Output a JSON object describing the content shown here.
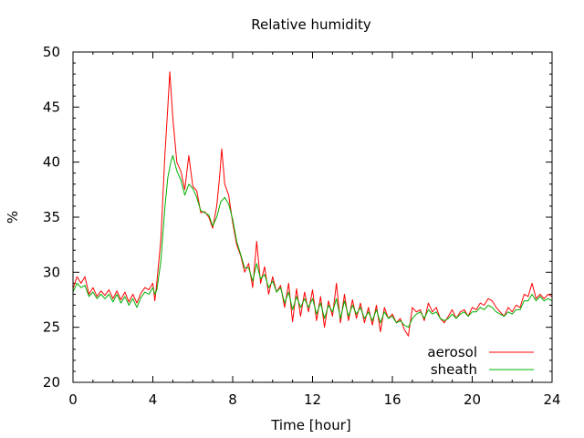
{
  "chart_data": {
    "type": "line",
    "title": "Relative humidity",
    "xlabel": "Time [hour]",
    "ylabel": "%",
    "xlim": [
      0,
      24
    ],
    "ylim": [
      20,
      50
    ],
    "x_ticks": [
      0,
      4,
      8,
      12,
      16,
      20,
      24
    ],
    "y_ticks": [
      20,
      25,
      30,
      35,
      40,
      45,
      50
    ],
    "grid": false,
    "legend_position": "bottom-right",
    "series": [
      {
        "name": "aerosol",
        "color": "#ff0000",
        "points": [
          [
            0,
            28.5
          ],
          [
            0.2,
            29.6
          ],
          [
            0.4,
            29.0
          ],
          [
            0.6,
            29.6
          ],
          [
            0.8,
            28.0
          ],
          [
            1,
            28.6
          ],
          [
            1.2,
            27.8
          ],
          [
            1.4,
            28.3
          ],
          [
            1.6,
            27.9
          ],
          [
            1.8,
            28.4
          ],
          [
            2,
            27.6
          ],
          [
            2.2,
            28.3
          ],
          [
            2.4,
            27.5
          ],
          [
            2.6,
            28.2
          ],
          [
            2.8,
            27.3
          ],
          [
            3,
            28.0
          ],
          [
            3.2,
            27.2
          ],
          [
            3.4,
            28.1
          ],
          [
            3.6,
            28.6
          ],
          [
            3.8,
            28.4
          ],
          [
            4,
            29.0
          ],
          [
            4.1,
            27.4
          ],
          [
            4.2,
            29.1
          ],
          [
            4.4,
            33.0
          ],
          [
            4.6,
            40.5
          ],
          [
            4.75,
            45.0
          ],
          [
            4.85,
            48.2
          ],
          [
            5.0,
            44.0
          ],
          [
            5.2,
            40.0
          ],
          [
            5.4,
            39.2
          ],
          [
            5.6,
            37.5
          ],
          [
            5.8,
            40.6
          ],
          [
            6.0,
            37.8
          ],
          [
            6.2,
            37.4
          ],
          [
            6.4,
            35.4
          ],
          [
            6.6,
            35.5
          ],
          [
            6.8,
            35.0
          ],
          [
            7.0,
            34.0
          ],
          [
            7.2,
            36.0
          ],
          [
            7.35,
            38.8
          ],
          [
            7.45,
            41.2
          ],
          [
            7.6,
            38.0
          ],
          [
            7.8,
            37.0
          ],
          [
            8.0,
            34.5
          ],
          [
            8.2,
            32.5
          ],
          [
            8.4,
            31.5
          ],
          [
            8.6,
            30.0
          ],
          [
            8.8,
            30.8
          ],
          [
            9.0,
            28.6
          ],
          [
            9.2,
            32.8
          ],
          [
            9.4,
            29.0
          ],
          [
            9.6,
            30.5
          ],
          [
            9.8,
            28.0
          ],
          [
            10.0,
            29.6
          ],
          [
            10.2,
            28.2
          ],
          [
            10.4,
            28.8
          ],
          [
            10.6,
            26.8
          ],
          [
            10.8,
            29.0
          ],
          [
            11.0,
            25.5
          ],
          [
            11.2,
            28.5
          ],
          [
            11.4,
            26.0
          ],
          [
            11.6,
            28.2
          ],
          [
            11.8,
            26.4
          ],
          [
            12.0,
            28.4
          ],
          [
            12.2,
            25.6
          ],
          [
            12.4,
            27.8
          ],
          [
            12.6,
            25.0
          ],
          [
            12.8,
            27.4
          ],
          [
            13.0,
            26.0
          ],
          [
            13.2,
            29.0
          ],
          [
            13.4,
            25.4
          ],
          [
            13.6,
            28.0
          ],
          [
            13.8,
            25.6
          ],
          [
            14.0,
            27.5
          ],
          [
            14.2,
            25.8
          ],
          [
            14.4,
            27.2
          ],
          [
            14.6,
            25.4
          ],
          [
            14.8,
            26.8
          ],
          [
            15.0,
            25.2
          ],
          [
            15.2,
            27.0
          ],
          [
            15.4,
            24.6
          ],
          [
            15.6,
            26.8
          ],
          [
            15.8,
            25.8
          ],
          [
            16.0,
            26.2
          ],
          [
            16.2,
            25.4
          ],
          [
            16.4,
            25.8
          ],
          [
            16.6,
            24.8
          ],
          [
            16.8,
            24.2
          ],
          [
            17.0,
            26.8
          ],
          [
            17.2,
            26.4
          ],
          [
            17.4,
            26.6
          ],
          [
            17.6,
            25.6
          ],
          [
            17.8,
            27.2
          ],
          [
            18.0,
            26.4
          ],
          [
            18.2,
            26.8
          ],
          [
            18.4,
            25.8
          ],
          [
            18.6,
            25.4
          ],
          [
            18.8,
            26.0
          ],
          [
            19.0,
            26.6
          ],
          [
            19.2,
            25.8
          ],
          [
            19.4,
            26.4
          ],
          [
            19.6,
            26.6
          ],
          [
            19.8,
            26.0
          ],
          [
            20.0,
            26.8
          ],
          [
            20.2,
            26.6
          ],
          [
            20.4,
            27.2
          ],
          [
            20.6,
            27.0
          ],
          [
            20.8,
            27.6
          ],
          [
            21.0,
            27.4
          ],
          [
            21.2,
            26.8
          ],
          [
            21.4,
            26.4
          ],
          [
            21.6,
            26.0
          ],
          [
            21.8,
            26.8
          ],
          [
            22.0,
            26.4
          ],
          [
            22.2,
            27.0
          ],
          [
            22.4,
            26.8
          ],
          [
            22.6,
            28.0
          ],
          [
            22.8,
            27.8
          ],
          [
            23.0,
            29.0
          ],
          [
            23.2,
            27.6
          ],
          [
            23.4,
            28.0
          ],
          [
            23.6,
            27.6
          ],
          [
            23.8,
            28.0
          ],
          [
            24.0,
            27.8
          ]
        ]
      },
      {
        "name": "sheath",
        "color": "#00b000",
        "points": [
          [
            0,
            28.2
          ],
          [
            0.2,
            29.0
          ],
          [
            0.4,
            28.6
          ],
          [
            0.6,
            28.8
          ],
          [
            0.8,
            27.8
          ],
          [
            1,
            28.2
          ],
          [
            1.2,
            27.6
          ],
          [
            1.4,
            28.0
          ],
          [
            1.6,
            27.6
          ],
          [
            1.8,
            28.0
          ],
          [
            2,
            27.3
          ],
          [
            2.2,
            28.0
          ],
          [
            2.4,
            27.2
          ],
          [
            2.6,
            27.8
          ],
          [
            2.8,
            27.0
          ],
          [
            3,
            27.6
          ],
          [
            3.2,
            26.8
          ],
          [
            3.4,
            27.7
          ],
          [
            3.6,
            28.2
          ],
          [
            3.8,
            28.0
          ],
          [
            4,
            28.6
          ],
          [
            4.1,
            28.0
          ],
          [
            4.2,
            28.4
          ],
          [
            4.4,
            31.0
          ],
          [
            4.6,
            35.8
          ],
          [
            4.75,
            38.6
          ],
          [
            4.9,
            40.0
          ],
          [
            5.0,
            40.6
          ],
          [
            5.2,
            39.2
          ],
          [
            5.4,
            38.4
          ],
          [
            5.6,
            37.0
          ],
          [
            5.8,
            38.0
          ],
          [
            6.0,
            37.6
          ],
          [
            6.2,
            36.8
          ],
          [
            6.4,
            35.6
          ],
          [
            6.6,
            35.4
          ],
          [
            6.8,
            35.2
          ],
          [
            7.0,
            34.2
          ],
          [
            7.2,
            35.0
          ],
          [
            7.4,
            36.4
          ],
          [
            7.6,
            36.8
          ],
          [
            7.8,
            36.2
          ],
          [
            8.0,
            34.8
          ],
          [
            8.2,
            32.8
          ],
          [
            8.4,
            31.6
          ],
          [
            8.6,
            30.4
          ],
          [
            8.8,
            30.4
          ],
          [
            9.0,
            29.2
          ],
          [
            9.2,
            30.8
          ],
          [
            9.4,
            29.4
          ],
          [
            9.6,
            29.8
          ],
          [
            9.8,
            28.6
          ],
          [
            10.0,
            29.2
          ],
          [
            10.2,
            28.2
          ],
          [
            10.4,
            28.6
          ],
          [
            10.6,
            27.2
          ],
          [
            10.8,
            28.2
          ],
          [
            11.0,
            26.6
          ],
          [
            11.2,
            27.8
          ],
          [
            11.4,
            26.8
          ],
          [
            11.6,
            27.6
          ],
          [
            11.8,
            26.8
          ],
          [
            12.0,
            27.6
          ],
          [
            12.2,
            26.2
          ],
          [
            12.4,
            27.2
          ],
          [
            12.6,
            25.8
          ],
          [
            12.8,
            27.0
          ],
          [
            13.0,
            26.4
          ],
          [
            13.2,
            27.6
          ],
          [
            13.4,
            25.8
          ],
          [
            13.6,
            27.4
          ],
          [
            13.8,
            26.0
          ],
          [
            14.0,
            27.0
          ],
          [
            14.2,
            26.2
          ],
          [
            14.4,
            26.8
          ],
          [
            14.6,
            25.8
          ],
          [
            14.8,
            26.4
          ],
          [
            15.0,
            25.6
          ],
          [
            15.2,
            26.6
          ],
          [
            15.4,
            25.4
          ],
          [
            15.6,
            26.4
          ],
          [
            15.8,
            25.8
          ],
          [
            16.0,
            26.0
          ],
          [
            16.2,
            25.4
          ],
          [
            16.4,
            25.6
          ],
          [
            16.6,
            25.2
          ],
          [
            16.8,
            25.0
          ],
          [
            17.0,
            25.8
          ],
          [
            17.2,
            26.2
          ],
          [
            17.4,
            26.4
          ],
          [
            17.6,
            25.8
          ],
          [
            17.8,
            26.6
          ],
          [
            18.0,
            26.2
          ],
          [
            18.2,
            26.4
          ],
          [
            18.4,
            25.8
          ],
          [
            18.6,
            25.6
          ],
          [
            18.8,
            25.8
          ],
          [
            19.0,
            26.2
          ],
          [
            19.2,
            25.8
          ],
          [
            19.4,
            26.2
          ],
          [
            19.6,
            26.4
          ],
          [
            19.8,
            26.0
          ],
          [
            20.0,
            26.4
          ],
          [
            20.2,
            26.4
          ],
          [
            20.4,
            26.8
          ],
          [
            20.6,
            26.6
          ],
          [
            20.8,
            27.0
          ],
          [
            21.0,
            26.8
          ],
          [
            21.2,
            26.4
          ],
          [
            21.4,
            26.2
          ],
          [
            21.6,
            26.0
          ],
          [
            21.8,
            26.4
          ],
          [
            22.0,
            26.2
          ],
          [
            22.2,
            26.6
          ],
          [
            22.4,
            26.6
          ],
          [
            22.6,
            27.4
          ],
          [
            22.8,
            27.4
          ],
          [
            23.0,
            28.0
          ],
          [
            23.2,
            27.4
          ],
          [
            23.4,
            27.8
          ],
          [
            23.6,
            27.4
          ],
          [
            23.8,
            27.6
          ],
          [
            24.0,
            27.4
          ]
        ]
      }
    ]
  }
}
